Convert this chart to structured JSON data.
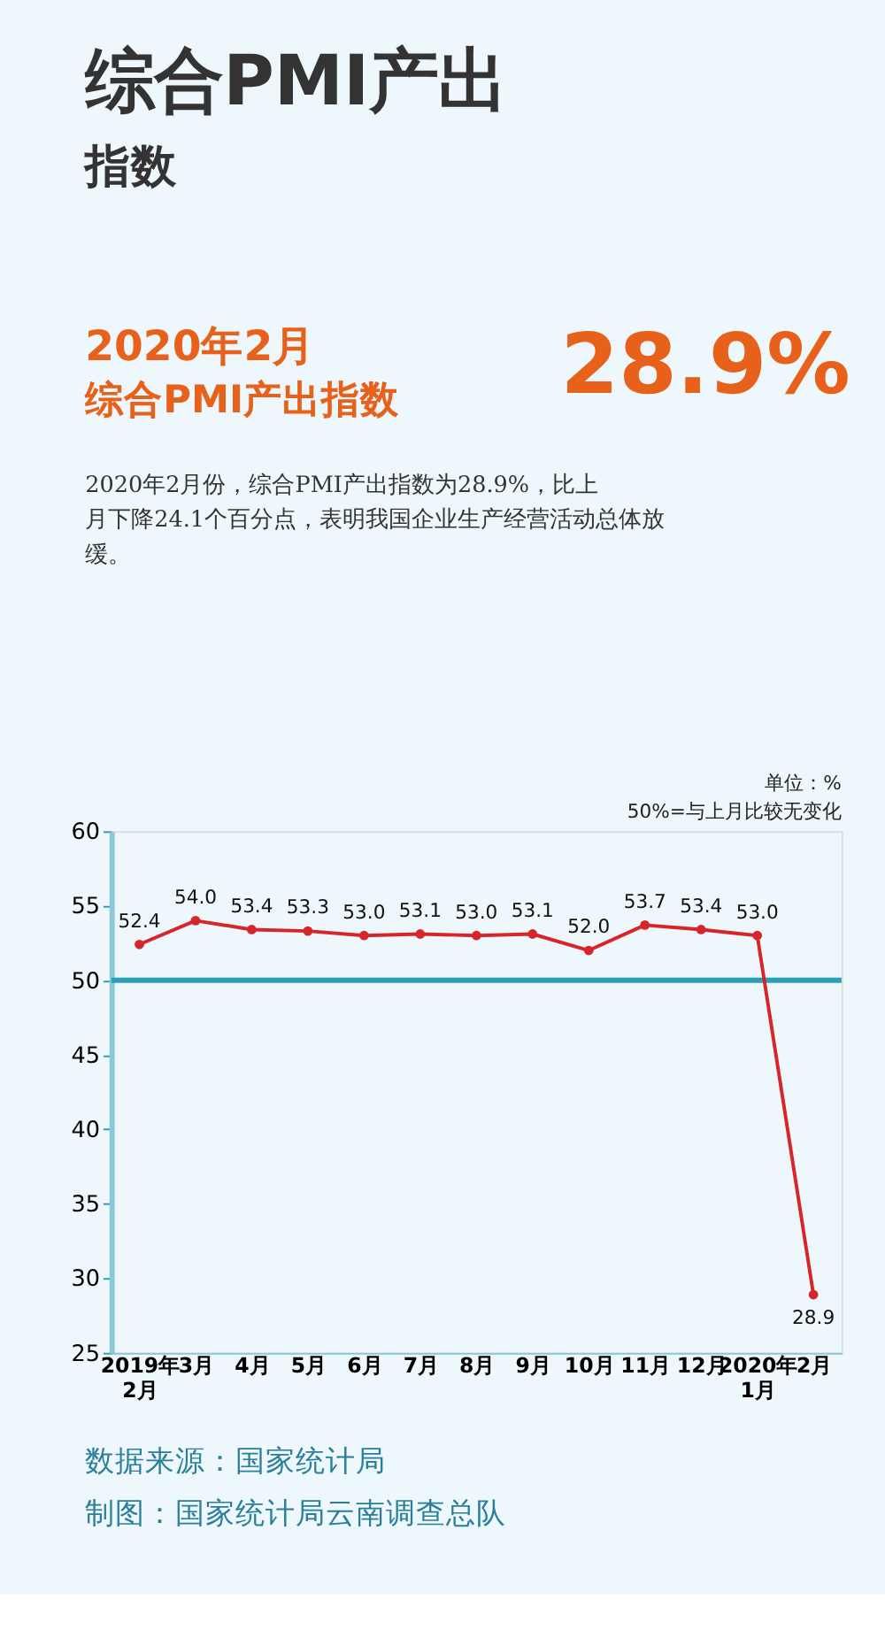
{
  "chart_data": {
    "type": "line",
    "title": [
      "综合PMI产出",
      "指数"
    ],
    "subtitle": [
      "2020年2月",
      "综合PMI产出指数",
      "28.9%"
    ],
    "annotations": [
      "2020年2月份，综合PMI产出指数为28.9%，比上月下降24.1个百分点，表明我国企业生产经营活动总体放缓。",
      "单位：%",
      "50%=与上月比较无变化",
      "数据来源：国家统计局",
      "制图：国家统计局云南调查总队"
    ],
    "categories": [
      "2019年\n2月",
      "3月",
      "4月",
      "5月",
      "6月",
      "7月",
      "8月",
      "9月",
      "10月",
      "11月",
      "12月",
      "2020年\n1月",
      "2月"
    ],
    "series": [
      {
        "color": "#d7262b",
        "values": [
          52.4,
          54.0,
          53.4,
          53.3,
          53.0,
          53.1,
          53.0,
          53.1,
          52.0,
          53.7,
          53.4,
          53.0,
          28.9
        ],
        "value_labels": [
          "52.4",
          "54.0",
          "53.4",
          "53.3",
          "53.0",
          "53.1",
          "53.0",
          "53.1",
          "52.0",
          "53.7",
          "53.4",
          "53.0",
          "28.9"
        ]
      }
    ],
    "ylim": [
      25,
      60
    ],
    "yticks": [
      25,
      30,
      35,
      40,
      45,
      50,
      55,
      60
    ],
    "ref_lines": [
      {
        "axis": "y",
        "value": 50,
        "color": "#2a9fb5"
      }
    ],
    "marker": "circle",
    "line_style": "solid",
    "grid": false
  }
}
